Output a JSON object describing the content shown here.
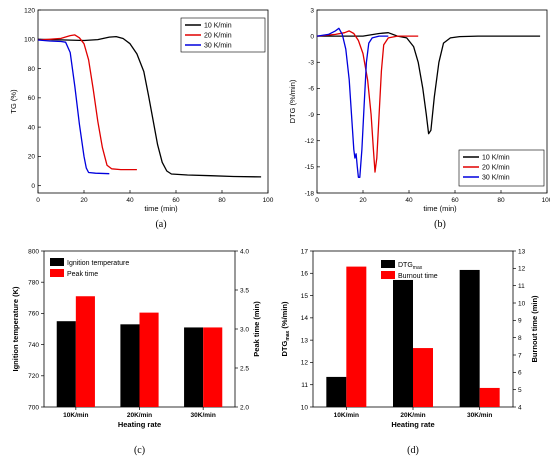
{
  "chart_data": [
    {
      "panel": "(a)",
      "type": "line",
      "xlabel": "time (min)",
      "ylabel": "TG (%)",
      "xlim": [
        0,
        100
      ],
      "ylim": [
        -5,
        120
      ],
      "xticks": [
        0,
        20,
        40,
        60,
        80,
        100
      ],
      "yticks": [
        0,
        20,
        40,
        60,
        80,
        100,
        120
      ],
      "legend": "top-right",
      "series": [
        {
          "name": "10 K/min",
          "color": "#000000",
          "points": [
            [
              0,
              100
            ],
            [
              10,
              99.6
            ],
            [
              20,
              99.2
            ],
            [
              26,
              99.8
            ],
            [
              31,
              101.5
            ],
            [
              34,
              101.8
            ],
            [
              37,
              100.5
            ],
            [
              40,
              97
            ],
            [
              43,
              90
            ],
            [
              46,
              78
            ],
            [
              48,
              62
            ],
            [
              50,
              45
            ],
            [
              52,
              28
            ],
            [
              54,
              16
            ],
            [
              56,
              10
            ],
            [
              58,
              8
            ],
            [
              65,
              7.3
            ],
            [
              75,
              6.8
            ],
            [
              85,
              6.3
            ],
            [
              97,
              6
            ]
          ]
        },
        {
          "name": "20 K/min",
          "color": "#e00000",
          "points": [
            [
              0,
              99.5
            ],
            [
              5,
              100
            ],
            [
              10,
              100.6
            ],
            [
              14,
              102.5
            ],
            [
              16,
              103
            ],
            [
              18,
              101
            ],
            [
              20,
              97
            ],
            [
              22,
              86
            ],
            [
              24,
              66
            ],
            [
              26,
              44
            ],
            [
              28,
              26
            ],
            [
              30,
              14
            ],
            [
              32,
              11.5
            ],
            [
              36,
              11
            ],
            [
              43,
              11
            ]
          ]
        },
        {
          "name": "30 K/min",
          "color": "#0000dd",
          "points": [
            [
              0,
              99.5
            ],
            [
              5,
              98.8
            ],
            [
              10,
              98.5
            ],
            [
              12,
              98
            ],
            [
              14,
              91
            ],
            [
              16,
              68
            ],
            [
              18,
              42
            ],
            [
              20,
              20
            ],
            [
              21,
              12
            ],
            [
              22,
              9
            ],
            [
              25,
              8.5
            ],
            [
              31,
              8.2
            ]
          ]
        }
      ]
    },
    {
      "panel": "(b)",
      "type": "line",
      "xlabel": "time (min)",
      "ylabel": "DTG (%/min)",
      "xlim": [
        0,
        100
      ],
      "ylim": [
        -18,
        3
      ],
      "xticks": [
        0,
        20,
        40,
        60,
        80,
        100
      ],
      "yticks": [
        3,
        0,
        -3,
        -6,
        -9,
        -12,
        -15,
        -18
      ],
      "legend": "bottom-right",
      "series": [
        {
          "name": "10 K/min",
          "color": "#000000",
          "points": [
            [
              0,
              0
            ],
            [
              20,
              0
            ],
            [
              27,
              0.3
            ],
            [
              31,
              0.4
            ],
            [
              35,
              0
            ],
            [
              39,
              -0.2
            ],
            [
              42,
              -1.2
            ],
            [
              44,
              -3
            ],
            [
              46,
              -6
            ],
            [
              47.5,
              -9
            ],
            [
              48.5,
              -11.2
            ],
            [
              49.5,
              -10.8
            ],
            [
              51,
              -7
            ],
            [
              53,
              -3
            ],
            [
              55,
              -0.8
            ],
            [
              58,
              -0.2
            ],
            [
              62,
              -0.05
            ],
            [
              70,
              0
            ],
            [
              97,
              0
            ]
          ]
        },
        {
          "name": "20 K/min",
          "color": "#e00000",
          "points": [
            [
              0,
              0
            ],
            [
              8,
              0.2
            ],
            [
              12,
              0.4
            ],
            [
              14,
              0.6
            ],
            [
              16,
              0.3
            ],
            [
              18,
              -0.5
            ],
            [
              20,
              -2
            ],
            [
              22,
              -5
            ],
            [
              23.5,
              -9
            ],
            [
              24.5,
              -13
            ],
            [
              25.2,
              -15.6
            ],
            [
              26,
              -14
            ],
            [
              27,
              -9
            ],
            [
              28,
              -4
            ],
            [
              29,
              -1
            ],
            [
              31,
              -0.2
            ],
            [
              35,
              0
            ],
            [
              44,
              0
            ]
          ]
        },
        {
          "name": "30 K/min",
          "color": "#0000dd",
          "points": [
            [
              0,
              0
            ],
            [
              5,
              0.2
            ],
            [
              8,
              0.6
            ],
            [
              9.5,
              0.9
            ],
            [
              11,
              0.2
            ],
            [
              12.5,
              -1.5
            ],
            [
              14,
              -5
            ],
            [
              15,
              -9
            ],
            [
              16,
              -13
            ],
            [
              16.5,
              -14
            ],
            [
              17,
              -13.5
            ],
            [
              17.5,
              -15
            ],
            [
              18,
              -16.2
            ],
            [
              18.6,
              -16.2
            ],
            [
              19.5,
              -13
            ],
            [
              20.5,
              -8
            ],
            [
              21.5,
              -3
            ],
            [
              22.5,
              -0.8
            ],
            [
              24,
              -0.2
            ],
            [
              27,
              0
            ],
            [
              31,
              0
            ]
          ]
        }
      ]
    },
    {
      "panel": "(c)",
      "type": "bar",
      "xlabel": "Heating rate",
      "ylabel": "Ignition temperature (K)",
      "ylabel2": "Peak time (min)",
      "categories": [
        "10K/min",
        "20K/min",
        "30K/min"
      ],
      "ylim": [
        700,
        800
      ],
      "yticks": [
        700,
        720,
        740,
        760,
        780,
        800
      ],
      "ylim2": [
        2.0,
        4.0
      ],
      "yticks2": [
        "2.0",
        "2.5",
        "3.0",
        "3.5",
        "4.0"
      ],
      "legend": "top-left",
      "series": [
        {
          "name": "Ignition temperature",
          "axis": "left",
          "color": "#000000",
          "values": [
            755,
            753,
            751
          ]
        },
        {
          "name": "Peak time",
          "axis": "right",
          "color": "#ff0000",
          "values": [
            3.42,
            3.21,
            3.02
          ]
        }
      ]
    },
    {
      "panel": "(d)",
      "type": "bar",
      "xlabel": "Heating rate",
      "ylabel": "DTG",
      "ylabel_sub": "max",
      "ylabel_unit": " (%/min)",
      "ylabel2": "Burnout time (min)",
      "categories": [
        "10K/min",
        "20K/min",
        "30K/min"
      ],
      "ylim": [
        10,
        17
      ],
      "yticks": [
        10,
        11,
        12,
        13,
        14,
        15,
        16,
        17
      ],
      "ylim2": [
        4,
        13
      ],
      "yticks2": [
        4,
        5,
        6,
        7,
        8,
        9,
        10,
        11,
        12,
        13
      ],
      "legend": "top-left",
      "series": [
        {
          "name": "DTG",
          "name_sub": "max",
          "axis": "left",
          "color": "#000000",
          "values": [
            11.35,
            15.7,
            16.15
          ]
        },
        {
          "name": "Burnout time",
          "axis": "right",
          "color": "#ff0000",
          "values": [
            12.1,
            7.4,
            5.1
          ]
        }
      ]
    }
  ]
}
